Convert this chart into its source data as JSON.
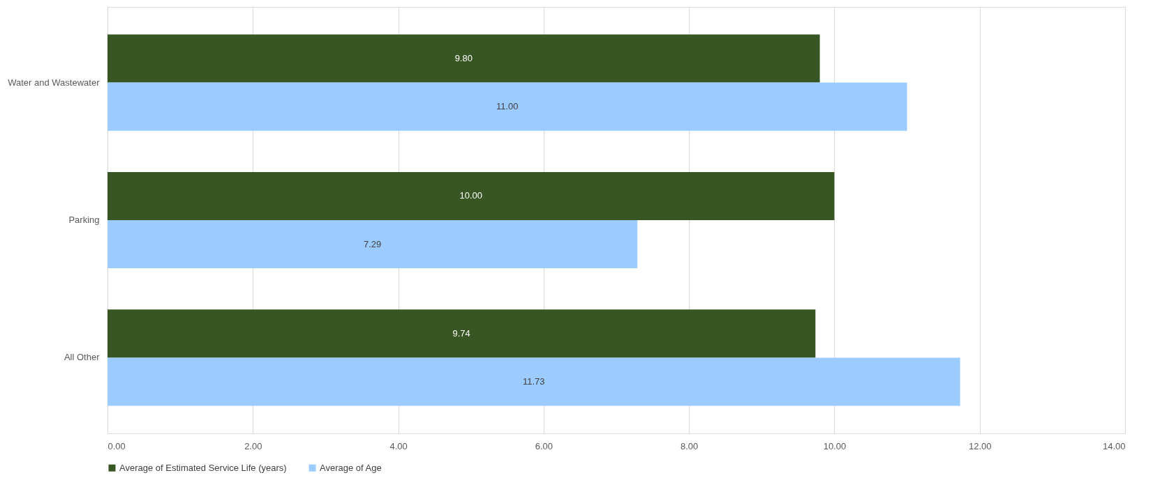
{
  "chart_data": {
    "type": "bar",
    "orientation": "horizontal",
    "categories": [
      "Water and Wastewater",
      "Parking",
      "All Other"
    ],
    "series": [
      {
        "name": "Average of Estimated Service Life (years)",
        "color": "#375623",
        "values": [
          9.8,
          10.0,
          9.74
        ],
        "value_labels": [
          "9.80",
          "10.00",
          "9.74"
        ]
      },
      {
        "name": "Average of Age",
        "color": "#9bcbff",
        "values": [
          11.0,
          7.29,
          11.73
        ],
        "value_labels": [
          "11.00",
          "7.29",
          "11.73"
        ]
      }
    ],
    "xlim": [
      0,
      14
    ],
    "xticks": [
      {
        "value": 0,
        "label": "0.00"
      },
      {
        "value": 2,
        "label": "2.00"
      },
      {
        "value": 4,
        "label": "4.00"
      },
      {
        "value": 6,
        "label": "6.00"
      },
      {
        "value": 8,
        "label": "8.00"
      },
      {
        "value": 10,
        "label": "10.00"
      },
      {
        "value": 12,
        "label": "12.00"
      },
      {
        "value": 14,
        "label": "14.00"
      }
    ],
    "grid": "x",
    "legend": "bottom"
  }
}
